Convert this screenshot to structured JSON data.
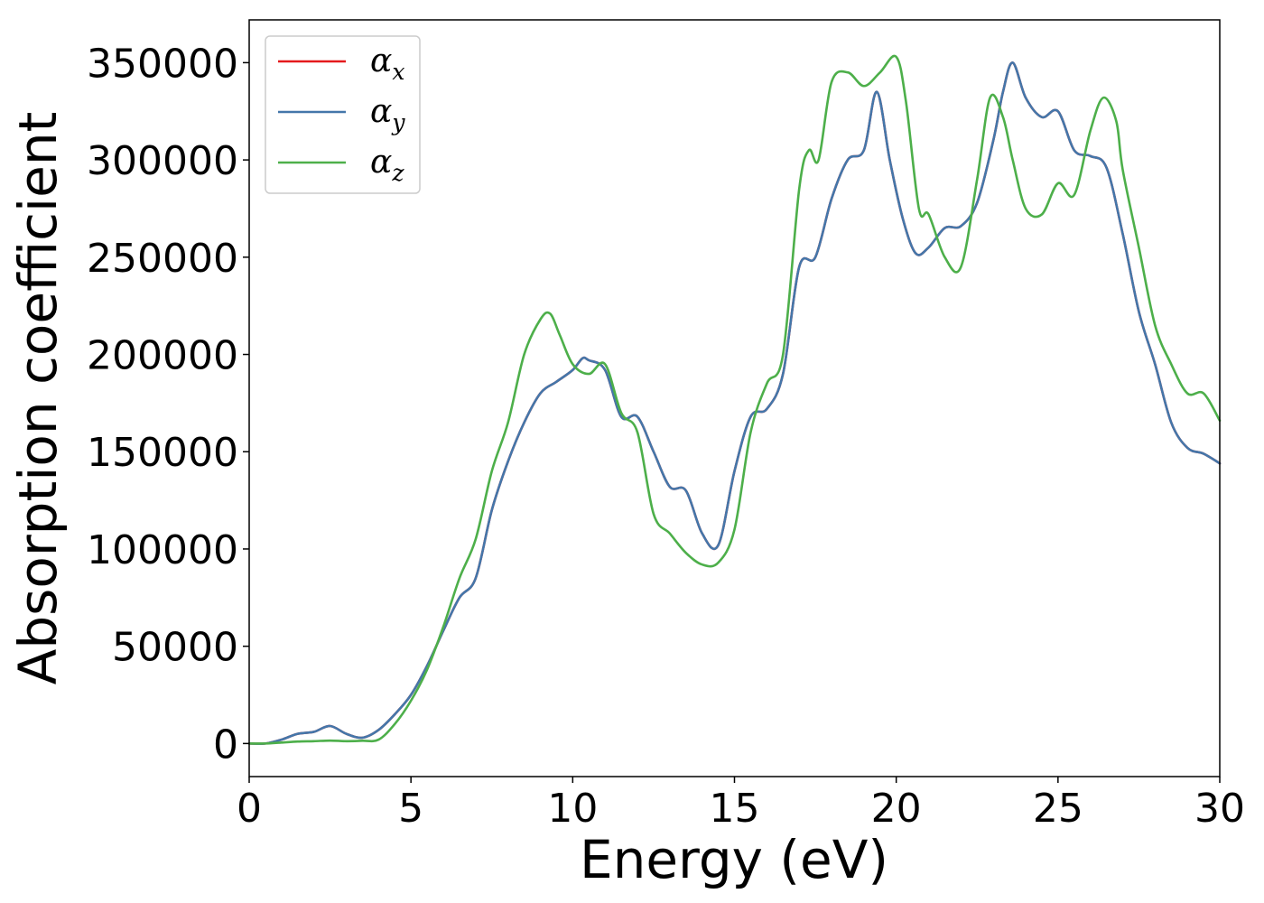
{
  "chart_data": {
    "type": "line",
    "xlabel": "Energy (eV)",
    "ylabel": "Absorption coefficient",
    "xlim": [
      0,
      30
    ],
    "ylim": [
      -17000,
      372000
    ],
    "xticks": [
      0,
      5,
      10,
      15,
      20,
      25,
      30
    ],
    "yticks": [
      0,
      50000,
      100000,
      150000,
      200000,
      250000,
      300000,
      350000
    ],
    "grid": false,
    "legend_position": "top-left",
    "series": [
      {
        "name": "αx",
        "legend_base": "α",
        "legend_sub": "x",
        "color": "#e41a1c",
        "x": [
          0,
          0.5,
          1.0,
          1.5,
          2.0,
          2.5,
          3.0,
          3.5,
          4.0,
          4.5,
          5.0,
          5.5,
          6.0,
          6.5,
          7.0,
          7.5,
          8.0,
          8.5,
          9.0,
          9.5,
          10.0,
          10.3,
          10.5,
          11.0,
          11.5,
          12.0,
          12.5,
          13.0,
          13.5,
          14.0,
          14.5,
          15.0,
          15.5,
          16.0,
          16.5,
          17.0,
          17.5,
          18.0,
          18.5,
          19.0,
          19.4,
          19.8,
          20.2,
          20.6,
          21.0,
          21.5,
          22.0,
          22.5,
          23.0,
          23.3,
          23.6,
          24.0,
          24.5,
          25.0,
          25.5,
          26.0,
          26.5,
          27.0,
          27.5,
          28.0,
          28.5,
          29.0,
          29.5,
          30.0
        ],
        "y": [
          0,
          0,
          2000,
          5000,
          6000,
          9000,
          5000,
          3000,
          7000,
          15000,
          25000,
          40000,
          58000,
          75000,
          85000,
          120000,
          145000,
          165000,
          180000,
          186000,
          192000,
          198000,
          197000,
          192000,
          168000,
          168000,
          150000,
          132000,
          130000,
          108000,
          102000,
          140000,
          168000,
          172000,
          190000,
          245000,
          250000,
          280000,
          300000,
          305000,
          335000,
          300000,
          270000,
          252000,
          255000,
          265000,
          266000,
          278000,
          310000,
          335000,
          350000,
          332000,
          322000,
          325000,
          305000,
          302000,
          296000,
          262000,
          222000,
          195000,
          165000,
          152000,
          149000,
          144000
        ]
      },
      {
        "name": "αy",
        "legend_base": "α",
        "legend_sub": "y",
        "color": "#4477aa",
        "x": [
          0,
          0.5,
          1.0,
          1.5,
          2.0,
          2.5,
          3.0,
          3.5,
          4.0,
          4.5,
          5.0,
          5.5,
          6.0,
          6.5,
          7.0,
          7.5,
          8.0,
          8.5,
          9.0,
          9.5,
          10.0,
          10.3,
          10.5,
          11.0,
          11.5,
          12.0,
          12.5,
          13.0,
          13.5,
          14.0,
          14.5,
          15.0,
          15.5,
          16.0,
          16.5,
          17.0,
          17.5,
          18.0,
          18.5,
          19.0,
          19.4,
          19.8,
          20.2,
          20.6,
          21.0,
          21.5,
          22.0,
          22.5,
          23.0,
          23.3,
          23.6,
          24.0,
          24.5,
          25.0,
          25.5,
          26.0,
          26.5,
          27.0,
          27.5,
          28.0,
          28.5,
          29.0,
          29.5,
          30.0
        ],
        "y": [
          0,
          0,
          2000,
          5000,
          6000,
          9000,
          5000,
          3000,
          7000,
          15000,
          25000,
          40000,
          58000,
          75000,
          85000,
          120000,
          145000,
          165000,
          180000,
          186000,
          192000,
          198000,
          197000,
          192000,
          168000,
          168000,
          150000,
          132000,
          130000,
          108000,
          102000,
          140000,
          168000,
          172000,
          190000,
          245000,
          250000,
          280000,
          300000,
          305000,
          335000,
          300000,
          270000,
          252000,
          255000,
          265000,
          266000,
          278000,
          310000,
          335000,
          350000,
          332000,
          322000,
          325000,
          305000,
          302000,
          296000,
          262000,
          222000,
          195000,
          165000,
          152000,
          149000,
          144000
        ]
      },
      {
        "name": "αz",
        "legend_base": "α",
        "legend_sub": "z",
        "color": "#4daf4a",
        "x": [
          0,
          0.5,
          1.0,
          1.5,
          2.0,
          2.5,
          3.0,
          3.5,
          4.0,
          4.5,
          5.0,
          5.5,
          6.0,
          6.5,
          7.0,
          7.5,
          8.0,
          8.5,
          9.0,
          9.3,
          9.6,
          10.0,
          10.5,
          11.0,
          11.5,
          12.0,
          12.5,
          13.0,
          13.5,
          14.0,
          14.5,
          15.0,
          15.5,
          16.0,
          16.5,
          17.0,
          17.3,
          17.6,
          18.0,
          18.5,
          19.0,
          19.5,
          20.0,
          20.3,
          20.7,
          21.0,
          21.5,
          22.0,
          22.5,
          22.9,
          23.3,
          23.6,
          24.0,
          24.5,
          25.0,
          25.5,
          26.0,
          26.4,
          26.8,
          27.0,
          27.5,
          28.0,
          28.5,
          29.0,
          29.5,
          30.0
        ],
        "y": [
          0,
          0,
          500,
          1000,
          1200,
          1500,
          1200,
          1400,
          2000,
          10000,
          22000,
          38000,
          60000,
          85000,
          105000,
          140000,
          165000,
          200000,
          218000,
          221000,
          210000,
          195000,
          190000,
          195000,
          170000,
          160000,
          118000,
          108000,
          98000,
          92000,
          93000,
          110000,
          160000,
          185000,
          200000,
          285000,
          305000,
          300000,
          340000,
          345000,
          338000,
          345000,
          353000,
          330000,
          275000,
          272000,
          250000,
          245000,
          290000,
          332000,
          322000,
          300000,
          275000,
          272000,
          288000,
          282000,
          315000,
          332000,
          320000,
          295000,
          255000,
          215000,
          195000,
          180000,
          180000,
          166000
        ]
      }
    ]
  }
}
